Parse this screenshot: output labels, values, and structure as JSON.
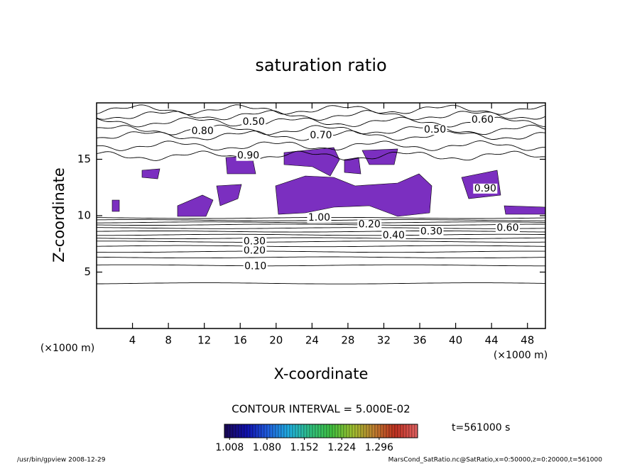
{
  "chart_data": {
    "type": "contour",
    "title": "saturation ratio",
    "xlabel": "X-coordinate",
    "ylabel": "Z-coordinate",
    "x_unit": "(×1000 m)",
    "xlim": [
      0,
      50
    ],
    "xticks": [
      4,
      8,
      12,
      16,
      20,
      24,
      28,
      32,
      36,
      40,
      44,
      48
    ],
    "ylim": [
      0,
      20
    ],
    "yticks": [
      5,
      10,
      15
    ],
    "line_color": "#000000",
    "shade_color": "#7b2fc0",
    "contours": [
      {
        "level": 0.05,
        "z": 4.0
      },
      {
        "level": 0.1,
        "z": 5.6
      },
      {
        "level": 0.15,
        "z": 6.3
      },
      {
        "level": 0.2,
        "z": 6.8
      },
      {
        "level": 0.25,
        "z": 7.3
      },
      {
        "level": 0.3,
        "z": 7.7
      },
      {
        "level": 0.35,
        "z": 8.0
      },
      {
        "level": 0.4,
        "z": 8.3
      },
      {
        "level": 0.45,
        "z": 8.6
      },
      {
        "level": 0.5,
        "z": 8.9
      },
      {
        "level": 0.55,
        "z": 9.2
      },
      {
        "level": 0.6,
        "z": 9.4
      },
      {
        "level": 0.65,
        "z": 9.6
      },
      {
        "level": 0.7,
        "z": 9.8
      },
      {
        "level": 0.9,
        "z": 15.3
      },
      {
        "level": 0.8,
        "z": 16.2
      },
      {
        "level": 0.7,
        "z": 17.1
      },
      {
        "level": 0.6,
        "z": 17.6
      },
      {
        "level": 0.5,
        "z": 18.3
      },
      {
        "level": 0.6,
        "z": 18.9
      },
      {
        "level": 0.7,
        "z": 19.4
      }
    ],
    "contour_labels": [
      {
        "value": 0.1,
        "label": "0.10",
        "x": 17.7,
        "z": 5.5
      },
      {
        "value": 0.2,
        "label": "0.20",
        "x": 17.6,
        "z": 6.9
      },
      {
        "value": 0.3,
        "label": "0.30",
        "x": 17.6,
        "z": 7.7
      },
      {
        "value": 1,
        "label": "1.00",
        "x": 24.8,
        "z": 9.8
      },
      {
        "value": 0.4,
        "label": "0.40",
        "x": 33.1,
        "z": 8.25
      },
      {
        "value": 0.3,
        "label": "0.30",
        "x": 37.3,
        "z": 8.6
      },
      {
        "value": 0.2,
        "label": "0.20",
        "x": 30.4,
        "z": 9.2
      },
      {
        "value": 0.6,
        "label": "0.60",
        "x": 45.8,
        "z": 8.9
      },
      {
        "value": 0.9,
        "label": "0.90",
        "x": 43.3,
        "z": 12.4
      },
      {
        "value": 0.9,
        "label": "0.90",
        "x": 16.9,
        "z": 15.3
      },
      {
        "value": 0.8,
        "label": "0.80",
        "x": 11.8,
        "z": 17.5
      },
      {
        "value": 0.7,
        "label": "0.70",
        "x": 25.0,
        "z": 17.1
      },
      {
        "value": 0.5,
        "label": "0.50",
        "x": 17.5,
        "z": 18.3
      },
      {
        "value": 0.5,
        "label": "0.50",
        "x": 37.7,
        "z": 17.6
      },
      {
        "value": 0.6,
        "label": "0.60",
        "x": 43.0,
        "z": 18.5
      }
    ],
    "contour_interval": "CONTOUR INTERVAL = 5.000E-02",
    "colorbar": {
      "clim": [
        0.998,
        1.37
      ],
      "ticks": [
        {
          "value": 1.008,
          "label": "1.008"
        },
        {
          "value": 1.08,
          "label": "1.080"
        },
        1.152,
        1.224,
        1.296
      ],
      "colormap": [
        "#1a0a5a",
        "#1010b0",
        "#2060e0",
        "#20b0e0",
        "#30c080",
        "#40c040",
        "#a0c030",
        "#c08030",
        "#c03020",
        "#e06060"
      ]
    },
    "time_label": "t=561000 s",
    "footer_left": "/usr/bin/gpview   2008-12-29",
    "footer_right": "MarsCond_SatRatio.nc@SatRatio,x=0:50000,z=0:20000,t=561000"
  }
}
